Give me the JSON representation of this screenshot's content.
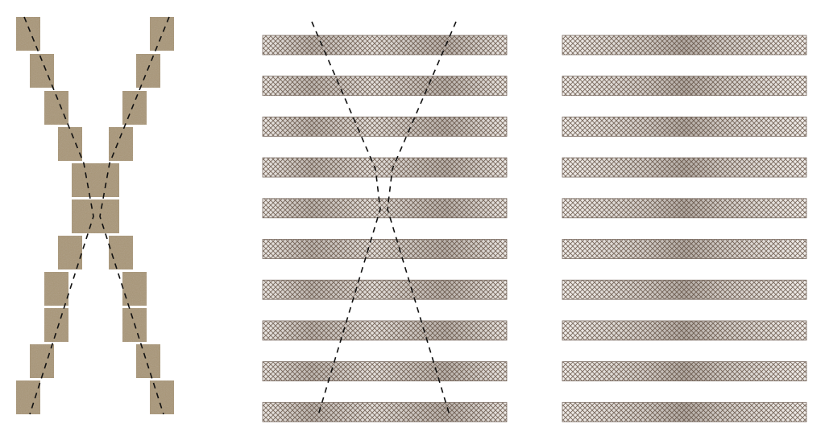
{
  "figure": {
    "panels": [
      {
        "name": "block-x-panel",
        "kind": "offset-blocks-forming-x",
        "block_rows": 11,
        "block_color": "#a99677",
        "guide_line_style": "dashed"
      },
      {
        "name": "banded-strips-with-guides-panel",
        "kind": "horizontal-strips",
        "strip_count": 10,
        "strip_pattern_color": "#7e6e62",
        "guide_line_style": "dashed"
      },
      {
        "name": "banded-strips-panel",
        "kind": "horizontal-strips",
        "strip_count": 10,
        "strip_pattern_color": "#7e6e62"
      }
    ]
  }
}
